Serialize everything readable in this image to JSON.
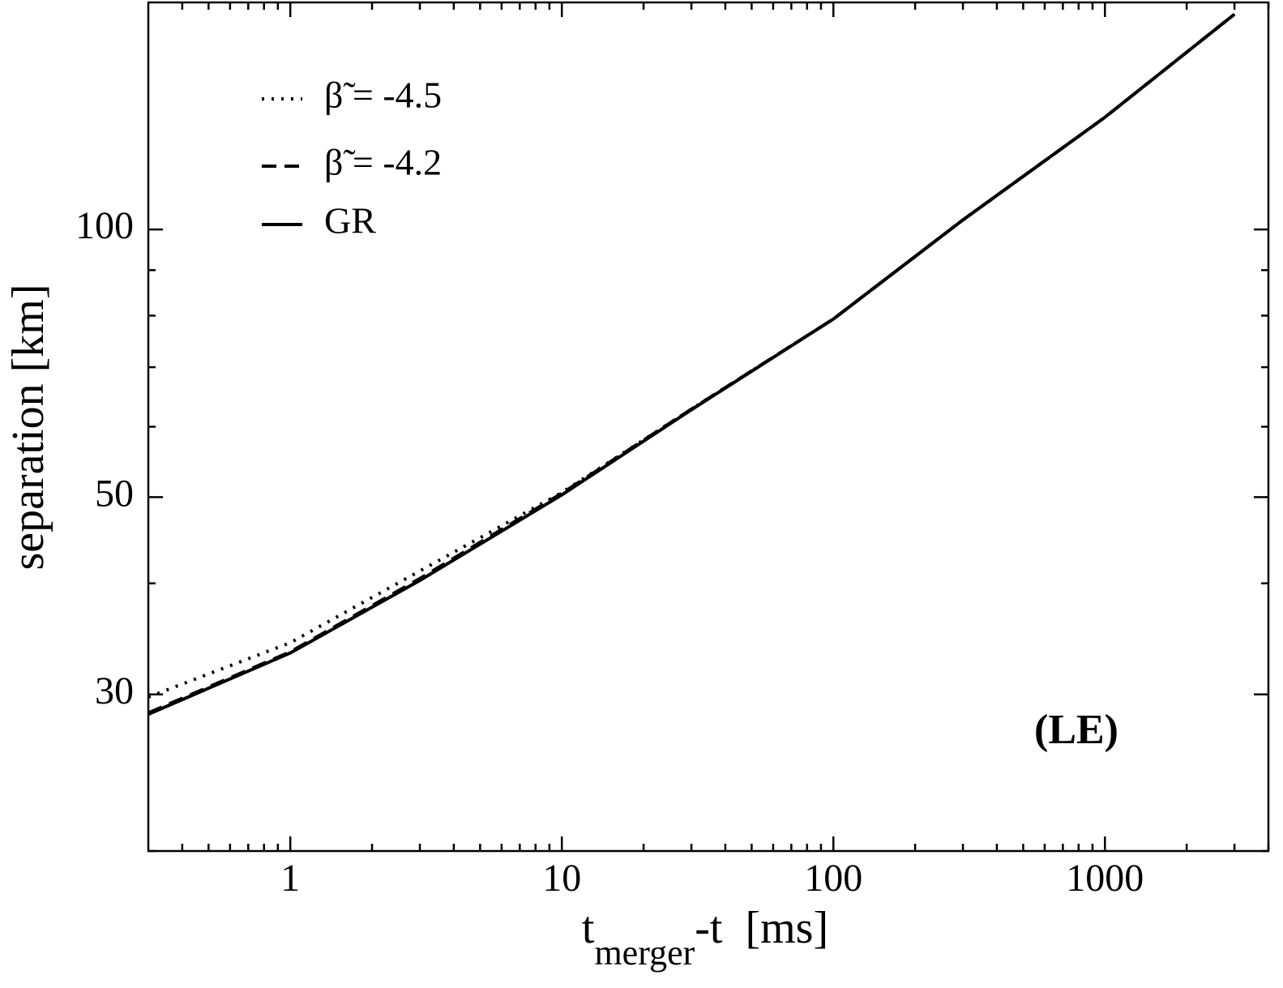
{
  "chart_data": {
    "type": "line",
    "xlabel": {
      "base": "t",
      "subscript": "merger",
      "rest": "-t  [ms]"
    },
    "ylabel": "separation [km]",
    "annotation": "(LE)",
    "xscale": "log",
    "yscale": "log",
    "xlim": [
      0.3,
      4000
    ],
    "ylim": [
      20,
      180
    ],
    "xticks": [
      1,
      10,
      100,
      1000
    ],
    "xminorticks": [
      0.4,
      0.5,
      0.6,
      0.7,
      0.8,
      0.9,
      2,
      3,
      4,
      5,
      6,
      7,
      8,
      9,
      20,
      30,
      40,
      50,
      60,
      70,
      80,
      90,
      200,
      300,
      400,
      500,
      600,
      700,
      800,
      900,
      2000,
      3000,
      4000
    ],
    "yticks": [
      30,
      50,
      100
    ],
    "yminorticks": [
      20,
      40,
      60,
      70,
      80,
      90
    ],
    "x": [
      0.3,
      1,
      3,
      10,
      30,
      100,
      300,
      1000,
      3000
    ],
    "series": [
      {
        "name": "β̃ = -4.5",
        "color": "#000000",
        "dash": "dotted",
        "values": [
          29.8,
          34.3,
          41.3,
          50.6,
          62.8,
          79.3,
          102.5,
          133.7,
          174.6
        ]
      },
      {
        "name": "β̃ = -4.2",
        "color": "#000000",
        "dash": "dashed",
        "values": [
          28.6,
          33.5,
          40.5,
          50.5,
          62.8,
          79.3,
          102.5,
          133.7,
          174.6
        ]
      },
      {
        "name": "GR",
        "color": "#000000",
        "dash": "solid",
        "values": [
          28.5,
          33.4,
          40.3,
          50.3,
          62.7,
          79.3,
          102.5,
          133.7,
          174.6
        ]
      }
    ]
  }
}
